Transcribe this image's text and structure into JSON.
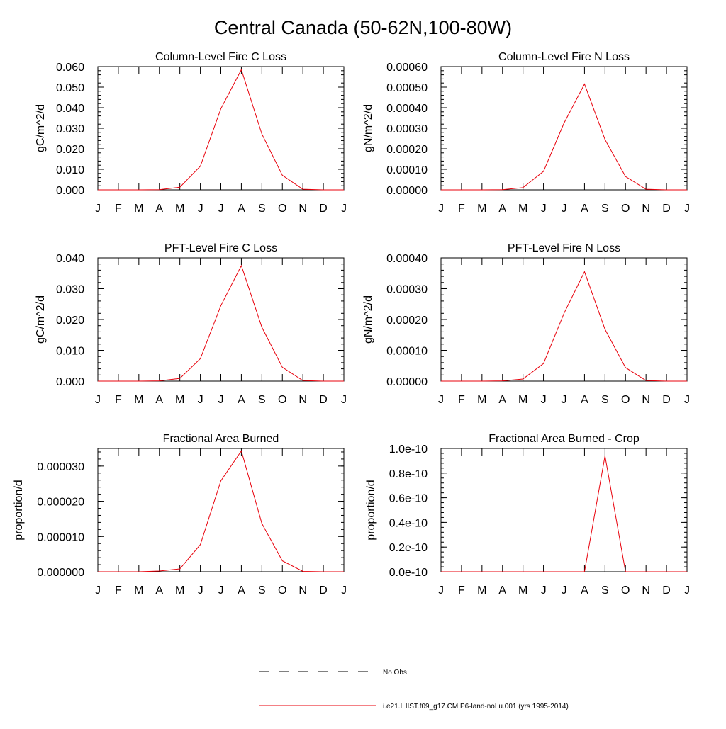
{
  "page": {
    "title": "Central Canada (50-62N,100-80W)"
  },
  "chart_data": [
    {
      "type": "line",
      "title": "Column-Level Fire C Loss",
      "ylabel": "gC/m^2/d",
      "categories": [
        "J",
        "F",
        "M",
        "A",
        "M",
        "J",
        "J",
        "A",
        "S",
        "O",
        "N",
        "D",
        "J"
      ],
      "yticks": [
        "0.000",
        "0.010",
        "0.020",
        "0.030",
        "0.040",
        "0.050",
        "0.060"
      ],
      "ylim": [
        0,
        0.06
      ],
      "series": [
        {
          "name": "i.e21.IHIST.f09_g17.CMIP6-land-noLu.001 (yrs 1995-2014)",
          "color": "#e8000b",
          "values": [
            0.0,
            0.0,
            0.0,
            0.0001,
            0.0013,
            0.0115,
            0.0395,
            0.0585,
            0.0272,
            0.0071,
            0.0003,
            0.0,
            0.0
          ]
        }
      ],
      "grid": false
    },
    {
      "type": "line",
      "title": "Column-Level Fire N Loss",
      "ylabel": "gN/m^2/d",
      "categories": [
        "J",
        "F",
        "M",
        "A",
        "M",
        "J",
        "J",
        "A",
        "S",
        "O",
        "N",
        "D",
        "J"
      ],
      "yticks": [
        "0.00000",
        "0.00010",
        "0.00020",
        "0.00030",
        "0.00040",
        "0.00050",
        "0.00060"
      ],
      "ylim": [
        0,
        0.0006
      ],
      "series": [
        {
          "name": "i.e21.IHIST.f09_g17.CMIP6-land-noLu.001 (yrs 1995-2014)",
          "color": "#e8000b",
          "values": [
            0.0,
            0.0,
            0.0,
            1e-06,
            1.1e-05,
            9e-05,
            0.000325,
            0.000515,
            0.000245,
            6.5e-05,
            3e-06,
            0.0,
            0.0
          ]
        }
      ],
      "grid": false
    },
    {
      "type": "line",
      "title": "PFT-Level Fire C Loss",
      "ylabel": "gC/m^2/d",
      "categories": [
        "J",
        "F",
        "M",
        "A",
        "M",
        "J",
        "J",
        "A",
        "S",
        "O",
        "N",
        "D",
        "J"
      ],
      "yticks": [
        "0.000",
        "0.010",
        "0.020",
        "0.030",
        "0.040"
      ],
      "ylim": [
        0,
        0.04
      ],
      "series": [
        {
          "name": "i.e21.IHIST.f09_g17.CMIP6-land-noLu.001 (yrs 1995-2014)",
          "color": "#e8000b",
          "values": [
            0.0,
            0.0,
            0.0,
            0.0001,
            0.0009,
            0.0073,
            0.0245,
            0.0375,
            0.0175,
            0.0045,
            0.0002,
            0.0,
            0.0
          ]
        }
      ],
      "grid": false
    },
    {
      "type": "line",
      "title": "PFT-Level Fire N Loss",
      "ylabel": "gN/m^2/d",
      "categories": [
        "J",
        "F",
        "M",
        "A",
        "M",
        "J",
        "J",
        "A",
        "S",
        "O",
        "N",
        "D",
        "J"
      ],
      "yticks": [
        "0.00000",
        "0.00010",
        "0.00020",
        "0.00030",
        "0.00040"
      ],
      "ylim": [
        0,
        0.0004
      ],
      "series": [
        {
          "name": "i.e21.IHIST.f09_g17.CMIP6-land-noLu.001 (yrs 1995-2014)",
          "color": "#e8000b",
          "values": [
            0.0,
            0.0,
            0.0,
            1e-06,
            7e-06,
            5.7e-05,
            0.00022,
            0.000355,
            0.000168,
            4.4e-05,
            2e-06,
            0.0,
            0.0
          ]
        }
      ],
      "grid": false
    },
    {
      "type": "line",
      "title": "Fractional Area Burned",
      "ylabel": "proportion/d",
      "categories": [
        "J",
        "F",
        "M",
        "A",
        "M",
        "J",
        "J",
        "A",
        "S",
        "O",
        "N",
        "D",
        "J"
      ],
      "yticks": [
        "0.000000",
        "0.000010",
        "0.000020",
        "0.000030"
      ],
      "ylim": [
        0,
        3.5e-05
      ],
      "series": [
        {
          "name": "i.e21.IHIST.f09_g17.CMIP6-land-noLu.001 (yrs 1995-2014)",
          "color": "#e8000b",
          "values": [
            0.0,
            0.0,
            0.0,
            2e-07,
            8e-07,
            7.7e-06,
            2.58e-05,
            3.43e-05,
            1.37e-05,
            3.1e-06,
            1e-07,
            0.0,
            0.0
          ]
        }
      ],
      "grid": false
    },
    {
      "type": "line",
      "title": "Fractional Area Burned - Crop",
      "ylabel": "proportion/d",
      "categories": [
        "J",
        "F",
        "M",
        "A",
        "M",
        "J",
        "J",
        "A",
        "S",
        "O",
        "N",
        "D",
        "J"
      ],
      "yticks": [
        "0.0e-10",
        "0.2e-10",
        "0.4e-10",
        "0.6e-10",
        "0.8e-10",
        "1.0e-10"
      ],
      "ylim": [
        0,
        1e-10
      ],
      "series": [
        {
          "name": "i.e21.IHIST.f09_g17.CMIP6-land-noLu.001 (yrs 1995-2014)",
          "color": "#e8000b",
          "values": [
            0,
            0,
            0,
            0,
            0,
            0,
            0,
            0,
            9.4e-11,
            0,
            0,
            0,
            0
          ]
        }
      ],
      "grid": false
    }
  ],
  "legend": {
    "placement": "bottom-center",
    "items": [
      {
        "label": "No Obs",
        "style": "dashed",
        "color": "#000000"
      },
      {
        "label": "i.e21.IHIST.f09_g17.CMIP6-land-noLu.001 (yrs 1995-2014)",
        "style": "solid",
        "color": "#e8000b"
      }
    ]
  }
}
